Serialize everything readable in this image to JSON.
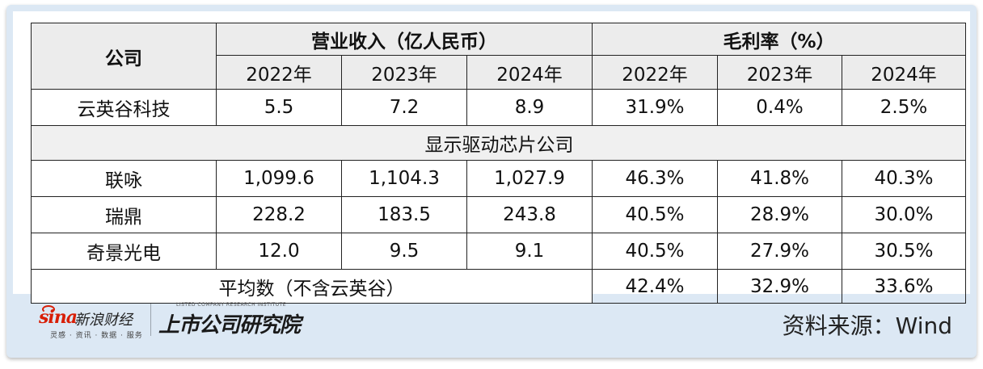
{
  "table": {
    "company_header": "公司",
    "revenue_header": "营业收入（亿人民币）",
    "margin_header": "毛利率（%）",
    "years": [
      "2022年",
      "2023年",
      "2024年"
    ],
    "rows": [
      {
        "name": "云英谷科技",
        "revenue": [
          "5.5",
          "7.2",
          "8.9"
        ],
        "margin": [
          "31.9%",
          "0.4%",
          "2.5%"
        ]
      }
    ],
    "section_label": "显示驱动芯片公司",
    "peer_rows": [
      {
        "name": "联咏",
        "revenue": [
          "1,099.6",
          "1,104.3",
          "1,027.9"
        ],
        "margin": [
          "46.3%",
          "41.8%",
          "40.3%"
        ]
      },
      {
        "name": "瑞鼎",
        "revenue": [
          "228.2",
          "183.5",
          "243.8"
        ],
        "margin": [
          "40.5%",
          "28.9%",
          "30.0%"
        ]
      },
      {
        "name": "奇景光电",
        "revenue": [
          "12.0",
          "9.5",
          "9.1"
        ],
        "margin": [
          "40.5%",
          "27.9%",
          "30.5%"
        ]
      }
    ],
    "average": {
      "label": "平均数（不含云英谷）",
      "margin": [
        "42.4%",
        "32.9%",
        "33.6%"
      ]
    }
  },
  "footer": {
    "sina_logo_text": "sina",
    "sina_brand": "新浪财经",
    "sina_tagline": "灵感 · 资讯 · 数据 · 服务",
    "institute_en": "LISTED COMPANY RESEARCH INSTITUTE",
    "institute_cn": "上市公司研究院",
    "source": "资料来源：Wind"
  },
  "colors": {
    "frame": "#dce8f4",
    "header_bg": "#ececec",
    "brand_red": "#d81e06"
  }
}
